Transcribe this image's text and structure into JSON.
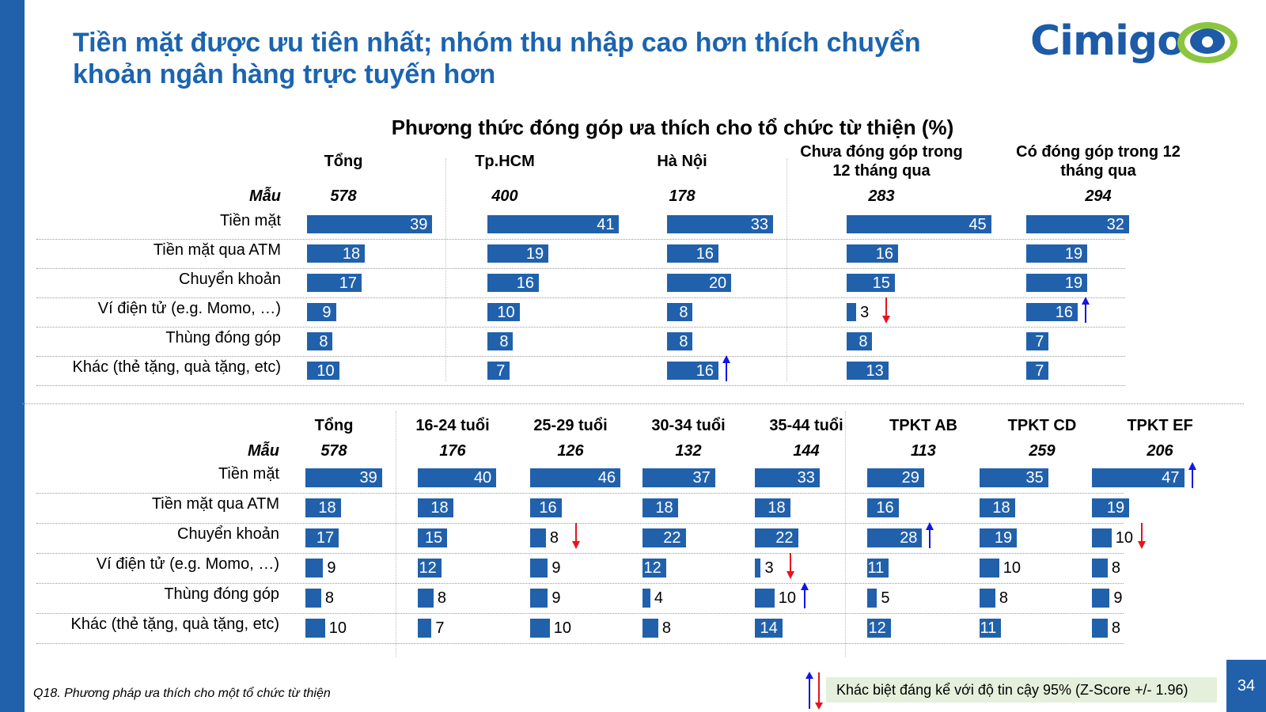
{
  "title": "Tiền mặt được ưu tiên nhất; nhóm thu nhập cao hơn thích chuyển khoản ngân hàng trực tuyến hơn",
  "logo_text": "Cimigo",
  "colors": {
    "bar": "#2161ac",
    "title": "#1b64b0",
    "up_arrow": "#1414e6",
    "down_arrow": "#e6141e",
    "legend_bg": "#e5f0dc"
  },
  "footnote": "Q18. Phương pháp ưa thích cho một tổ chức từ thiện",
  "legend_text": "Khác biệt đáng kể với độ tin cậy 95% (Z-Score +/- 1.96)",
  "page_number": "34",
  "chart_data": [
    {
      "type": "bar",
      "title": "Phương thức đóng góp ưa thích cho tổ chức từ thiện (%)",
      "sample_label": "Mẫu",
      "categories": [
        "Tiền mặt",
        "Tiền mặt qua ATM",
        "Chuyển khoản",
        "Ví điện tử (e.g. Momo, …)",
        "Thùng đóng góp",
        "Khác (thẻ tặng, quà tặng, etc)"
      ],
      "series": [
        {
          "name": "Tổng",
          "sample": "578",
          "values": [
            39,
            18,
            17,
            9,
            8,
            10
          ],
          "sig": [
            "",
            "",
            "",
            "",
            "",
            ""
          ]
        },
        {
          "name": "Tp.HCM",
          "sample": "400",
          "values": [
            41,
            19,
            16,
            10,
            8,
            7
          ],
          "sig": [
            "",
            "",
            "",
            "",
            "",
            ""
          ]
        },
        {
          "name": "Hà Nội",
          "sample": "178",
          "values": [
            33,
            16,
            20,
            8,
            8,
            16
          ],
          "sig": [
            "",
            "",
            "",
            "",
            "",
            "up"
          ]
        },
        {
          "name": "Chưa đóng góp trong 12 tháng qua",
          "sample": "283",
          "values": [
            45,
            16,
            15,
            3,
            8,
            13
          ],
          "sig": [
            "",
            "",
            "",
            "down",
            "",
            ""
          ]
        },
        {
          "name": "Có đóng góp trong 12 tháng qua",
          "sample": "294",
          "values": [
            32,
            19,
            19,
            16,
            7,
            7
          ],
          "sig": [
            "",
            "",
            "",
            "up",
            "",
            ""
          ]
        }
      ]
    },
    {
      "type": "bar",
      "sample_label": "Mẫu",
      "categories": [
        "Tiền mặt",
        "Tiền mặt qua ATM",
        "Chuyển khoản",
        "Ví điện tử (e.g. Momo, …)",
        "Thùng đóng góp",
        "Khác (thẻ tặng, quà tặng, etc)"
      ],
      "series": [
        {
          "name": "Tổng",
          "sample": "578",
          "values": [
            39,
            18,
            17,
            9,
            8,
            10
          ],
          "sig": [
            "",
            "",
            "",
            "",
            "",
            ""
          ]
        },
        {
          "name": "16-24 tuổi",
          "sample": "176",
          "values": [
            40,
            18,
            15,
            12,
            8,
            7
          ],
          "sig": [
            "",
            "",
            "",
            "",
            "",
            ""
          ]
        },
        {
          "name": "25-29 tuổi",
          "sample": "126",
          "values": [
            46,
            16,
            8,
            9,
            9,
            10
          ],
          "sig": [
            "",
            "",
            "down",
            "",
            "",
            ""
          ]
        },
        {
          "name": "30-34 tuổi",
          "sample": "132",
          "values": [
            37,
            18,
            22,
            12,
            4,
            8
          ],
          "sig": [
            "",
            "",
            "",
            "",
            "",
            ""
          ]
        },
        {
          "name": "35-44 tuổi",
          "sample": "144",
          "values": [
            33,
            18,
            22,
            3,
            10,
            14
          ],
          "sig": [
            "",
            "",
            "",
            "down",
            "up",
            ""
          ]
        },
        {
          "name": "TPKT AB",
          "sample": "113",
          "values": [
            29,
            16,
            28,
            11,
            5,
            12
          ],
          "sig": [
            "",
            "",
            "up",
            "",
            "",
            ""
          ]
        },
        {
          "name": "TPKT CD",
          "sample": "259",
          "values": [
            35,
            18,
            19,
            10,
            8,
            11
          ],
          "sig": [
            "",
            "",
            "",
            "",
            "",
            ""
          ]
        },
        {
          "name": "TPKT EF",
          "sample": "206",
          "values": [
            47,
            19,
            10,
            8,
            9,
            8
          ],
          "sig": [
            "up",
            "",
            "down",
            "",
            "",
            ""
          ]
        }
      ]
    }
  ]
}
